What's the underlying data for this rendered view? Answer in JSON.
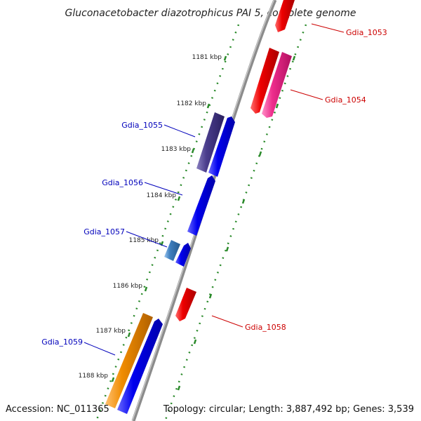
{
  "title": "Gluconacetobacter diazotrophicus PAI 5, complete genome",
  "footer": {
    "accession": "Accession: NC_011365",
    "summary": "Topology: circular; Length: 3,887,492 bp; Genes: 3,539"
  },
  "colors": {
    "backbone": "#8c8c8c",
    "tick_green": "#2a8a2a",
    "forward_blue": "#0000ee",
    "dark_purple": "#4a3d8c",
    "steel_blue": "#3f7fbf",
    "reverse_red": "#ee0000",
    "magenta": "#ee2d8c",
    "orange": "#f08c00",
    "label_blue": "#0000bb",
    "label_red": "#cc0000"
  },
  "kbp_ticks": [
    "1181 kbp",
    "1182 kbp",
    "1183 kbp",
    "1184 kbp",
    "1185 kbp",
    "1186 kbp",
    "1187 kbp",
    "1188 kbp"
  ],
  "genes": [
    {
      "name": "Gdia_1053",
      "strand": "reverse",
      "color": "reverse_red"
    },
    {
      "name": "Gdia_1054",
      "strand": "reverse",
      "color": "reverse_red"
    },
    {
      "name": "Gdia_1054 partner",
      "strand": "reverse",
      "color": "magenta"
    },
    {
      "name": "Gdia_1055",
      "strand": "forward",
      "color": "dark_purple"
    },
    {
      "name": "Gdia_1055 partner",
      "strand": "forward",
      "color": "forward_blue"
    },
    {
      "name": "Gdia_1056",
      "strand": "forward",
      "color": "forward_blue"
    },
    {
      "name": "Gdia_1057",
      "strand": "forward",
      "color": "steel_blue"
    },
    {
      "name": "Gdia_1057 partner",
      "strand": "forward",
      "color": "forward_blue"
    },
    {
      "name": "Gdia_1058",
      "strand": "reverse",
      "color": "reverse_red"
    },
    {
      "name": "Gdia_1059",
      "strand": "forward",
      "color": "orange"
    },
    {
      "name": "Gdia_1059 partner",
      "strand": "forward",
      "color": "forward_blue"
    }
  ],
  "gene_labels": [
    "Gdia_1053",
    "Gdia_1054",
    "Gdia_1055",
    "Gdia_1056",
    "Gdia_1057",
    "Gdia_1058",
    "Gdia_1059"
  ]
}
